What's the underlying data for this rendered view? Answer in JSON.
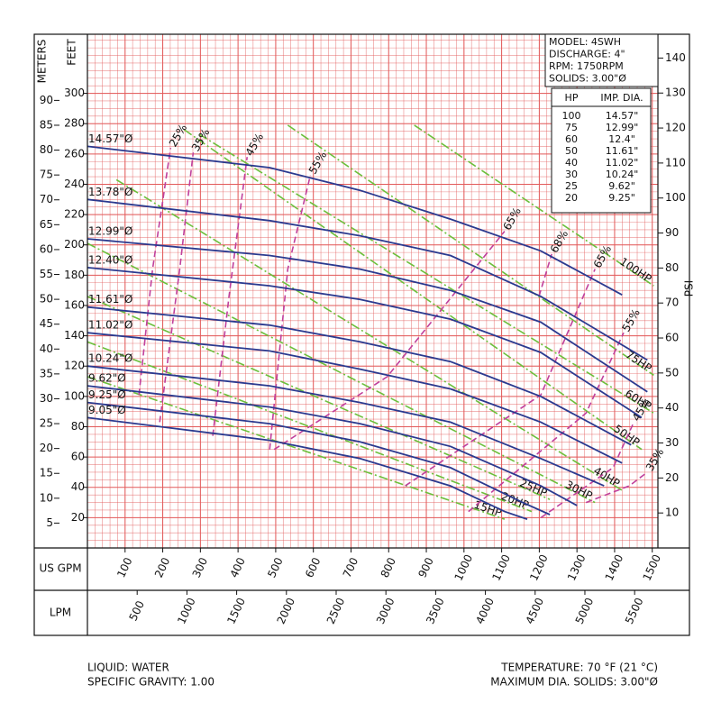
{
  "chart_data": {
    "type": "pump-curve",
    "xlabel": "US GPM",
    "ylabel": "FEET",
    "xlim": [
      0,
      1515
    ],
    "ylim": [
      0,
      339
    ],
    "xticks": [
      100,
      200,
      300,
      400,
      500,
      600,
      700,
      800,
      900,
      1000,
      1100,
      1200,
      1300,
      1400,
      1500
    ],
    "yticks": [
      20,
      40,
      60,
      80,
      100,
      120,
      140,
      160,
      180,
      200,
      220,
      240,
      260,
      280,
      300
    ],
    "grid": true,
    "grid_color": "#e25a5a",
    "grid_step": {
      "x": 20,
      "y": 5
    },
    "y_meters": {
      "label": "METERS",
      "lim": [
        0,
        103.3
      ],
      "ticks": [
        5,
        10,
        15,
        20,
        25,
        30,
        35,
        40,
        45,
        50,
        55,
        60,
        65,
        70,
        75,
        80,
        85,
        90
      ]
    },
    "y_psi": {
      "label": "PSI",
      "lim": [
        0,
        146.8
      ],
      "ticks": [
        10,
        20,
        30,
        40,
        50,
        60,
        70,
        80,
        90,
        100,
        110,
        120,
        130,
        140
      ]
    },
    "x_lpm": {
      "label": "LPM",
      "lim": [
        0,
        5734
      ],
      "ticks": [
        500,
        1000,
        1500,
        2000,
        2500,
        3000,
        3500,
        4000,
        4500,
        5000,
        5500
      ]
    },
    "impeller_curves": {
      "color": "#2b3a8f",
      "series": [
        {
          "name": "14.57\"Ø",
          "x": [
            0,
            484,
            724,
            964,
            1204,
            1420
          ],
          "values": [
            265,
            251,
            236,
            217,
            196,
            167
          ]
        },
        {
          "name": "13.78\"Ø",
          "x": [
            0,
            484,
            724,
            964,
            1204,
            1487
          ],
          "values": [
            230,
            216,
            206,
            193,
            166,
            124
          ]
        },
        {
          "name": "12.99\"Ø",
          "x": [
            0,
            484,
            724,
            964,
            1204,
            1487
          ],
          "values": [
            204,
            193,
            184,
            170,
            149,
            103
          ]
        },
        {
          "name": "12.40\"Ø",
          "x": [
            0,
            484,
            724,
            964,
            1204,
            1472
          ],
          "values": [
            185,
            173,
            164,
            151,
            129,
            86
          ]
        },
        {
          "name": "11.61\"Ø",
          "x": [
            0,
            484,
            724,
            964,
            1204,
            1444
          ],
          "values": [
            159,
            147,
            136,
            123,
            100,
            68
          ]
        },
        {
          "name": "11.02\"Ø",
          "x": [
            0,
            484,
            724,
            964,
            1204,
            1420
          ],
          "values": [
            142,
            130,
            118,
            105,
            83,
            56
          ]
        },
        {
          "name": "10.24\"Ø",
          "x": [
            0,
            484,
            724,
            964,
            1204,
            1372
          ],
          "values": [
            120,
            107,
            96,
            83,
            59,
            41
          ]
        },
        {
          "name": "9.62\"Ø",
          "x": [
            0,
            484,
            724,
            964,
            1204,
            1300
          ],
          "values": [
            107,
            93,
            82,
            67,
            41,
            28
          ]
        },
        {
          "name": "9.25\"Ø",
          "x": [
            0,
            484,
            724,
            964,
            1156,
            1228
          ],
          "values": [
            96,
            82,
            70,
            53,
            30,
            22
          ]
        },
        {
          "name": "9.05\"Ø",
          "x": [
            0,
            484,
            724,
            964,
            1108,
            1168
          ],
          "values": [
            86,
            71,
            59,
            41,
            24,
            19
          ]
        }
      ]
    },
    "hp_curves": {
      "color": "#6cbf3c",
      "series": [
        {
          "name": "100HP",
          "x": [
            868,
            1504
          ],
          "values": [
            279,
            173
          ]
        },
        {
          "name": "75HP",
          "x": [
            532,
            1504
          ],
          "values": [
            279,
            114
          ]
        },
        {
          "name": "60HP",
          "x": [
            297,
            1504
          ],
          "values": [
            273,
            89
          ]
        },
        {
          "name": "50HP",
          "x": [
            257,
            1472
          ],
          "values": [
            276,
            65
          ]
        },
        {
          "name": "40HP",
          "x": [
            77,
            1420
          ],
          "values": [
            243,
            38
          ]
        },
        {
          "name": "30HP",
          "x": [
            0,
            1348
          ],
          "values": [
            201,
            30
          ]
        },
        {
          "name": "25HP",
          "x": [
            0,
            1228
          ],
          "values": [
            166,
            32
          ]
        },
        {
          "name": "20HP",
          "x": [
            0,
            1180
          ],
          "values": [
            136,
            24
          ]
        },
        {
          "name": "15HP",
          "x": [
            0,
            1108
          ],
          "values": [
            113,
            19
          ]
        }
      ]
    },
    "efficiency_curves": {
      "color": "#c0409c",
      "series": [
        {
          "name": "25%",
          "x": [
            137,
            173,
            221
          ],
          "values": [
            101,
            184,
            264
          ]
        },
        {
          "name": "35%",
          "x": [
            192,
            245,
            281
          ],
          "values": [
            83,
            184,
            261
          ]
        },
        {
          "name": "45%",
          "x": [
            333,
            376,
            424
          ],
          "values": [
            74,
            166,
            258
          ]
        },
        {
          "name": "55%",
          "x": [
            484,
            532,
            592
          ],
          "values": [
            65,
            184,
            246
          ]
        },
        {
          "name": "65%",
          "x": [
            496,
            796,
            1108
          ],
          "values": [
            65,
            113,
            209
          ]
        },
        {
          "name": "68%",
          "x": [
            1199,
            1233
          ],
          "values": [
            166,
            194
          ]
        },
        {
          "name": "65%",
          "x": [
            844,
            1204,
            1348
          ],
          "values": [
            41,
            101,
            184
          ]
        },
        {
          "name": "55%",
          "x": [
            1012,
            1324,
            1424
          ],
          "values": [
            24,
            89,
            142
          ]
        },
        {
          "name": "45%",
          "x": [
            1204,
            1396,
            1451
          ],
          "values": [
            20,
            53,
            83
          ]
        },
        {
          "name": "35%",
          "x": [
            1324,
            1439,
            1487
          ],
          "values": [
            30,
            41,
            50
          ]
        }
      ]
    }
  },
  "info_box": {
    "lines": [
      "MODEL: 4SWH",
      "DISCHARGE: 4\"",
      "RPM: 1750RPM",
      "SOLIDS: 3.00\"Ø"
    ]
  },
  "hp_table": {
    "header": [
      "HP",
      "IMP. DIA."
    ],
    "rows": [
      [
        "100",
        "14.57\""
      ],
      [
        "75",
        "12.99\""
      ],
      [
        "60",
        "12.4\""
      ],
      [
        "50",
        "11.61\""
      ],
      [
        "40",
        "11.02\""
      ],
      [
        "30",
        "10.24\""
      ],
      [
        "25",
        "9.62\""
      ],
      [
        "20",
        "9.25\""
      ]
    ]
  },
  "footer": {
    "left": [
      "LIQUID: WATER",
      "SPECIFIC GRAVITY: 1.00"
    ],
    "right": [
      "TEMPERATURE: 70 °F (21 °C)",
      "MAXIMUM DIA. SOLIDS: 3.00\"Ø"
    ]
  }
}
